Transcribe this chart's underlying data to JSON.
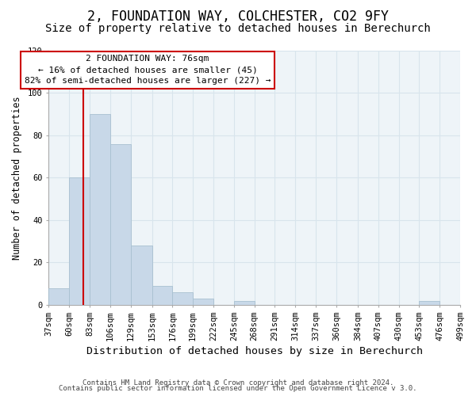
{
  "title": "2, FOUNDATION WAY, COLCHESTER, CO2 9FY",
  "subtitle": "Size of property relative to detached houses in Berechurch",
  "xlabel": "Distribution of detached houses by size in Berechurch",
  "ylabel": "Number of detached properties",
  "bar_edges": [
    37,
    60,
    83,
    106,
    129,
    153,
    176,
    199,
    222,
    245,
    268,
    291,
    314,
    337,
    360,
    384,
    407,
    430,
    453,
    476,
    499
  ],
  "bar_heights": [
    8,
    60,
    90,
    76,
    28,
    9,
    6,
    3,
    0,
    2,
    0,
    0,
    0,
    0,
    0,
    0,
    0,
    0,
    2,
    0
  ],
  "bar_color": "#c8d8e8",
  "bar_edge_color": "#a8c0d0",
  "vline_x": 76,
  "vline_color": "#cc0000",
  "ylim": [
    0,
    120
  ],
  "yticks": [
    0,
    20,
    40,
    60,
    80,
    100,
    120
  ],
  "annotation_title": "2 FOUNDATION WAY: 76sqm",
  "annotation_line1": "← 16% of detached houses are smaller (45)",
  "annotation_line2": "82% of semi-detached houses are larger (227) →",
  "annotation_box_color": "#ffffff",
  "annotation_box_edge": "#cc0000",
  "footer1": "Contains HM Land Registry data © Crown copyright and database right 2024.",
  "footer2": "Contains public sector information licensed under the Open Government Licence v 3.0.",
  "title_fontsize": 12,
  "subtitle_fontsize": 10,
  "xlabel_fontsize": 9.5,
  "ylabel_fontsize": 8.5,
  "tick_fontsize": 7.5,
  "annotation_fontsize": 8,
  "footer_fontsize": 6.5,
  "grid_color": "#d8e4ec",
  "bg_color": "#eef4f8"
}
